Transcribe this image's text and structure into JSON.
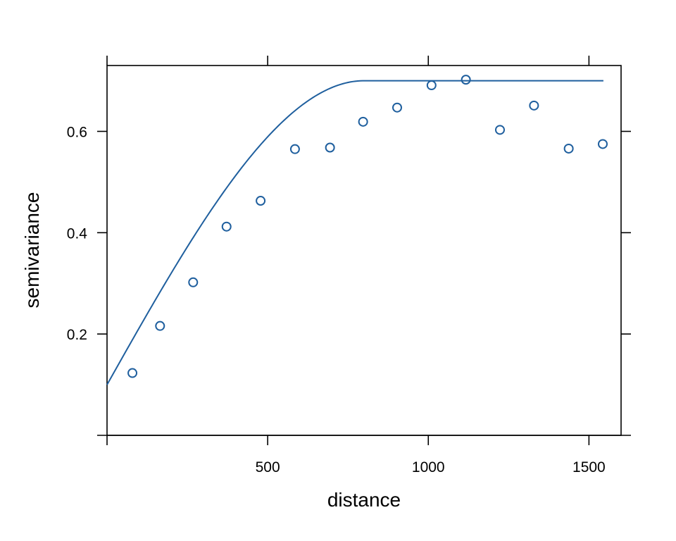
{
  "chart_data": {
    "type": "scatter",
    "title": "",
    "xlabel": "distance",
    "ylabel": "semivariance",
    "xlim": [
      0,
      1600
    ],
    "ylim": [
      0,
      0.73
    ],
    "x_ticks": [
      500,
      1000,
      1500
    ],
    "x_tick_labels": [
      "500",
      "1000",
      "1500"
    ],
    "y_ticks": [
      0.2,
      0.4,
      0.6
    ],
    "y_tick_labels": [
      "0.2",
      "0.4",
      "0.6"
    ],
    "grid": false,
    "legend": "none",
    "color": "#1f5f9e",
    "series": [
      {
        "kind": "points",
        "x": [
          79,
          165,
          268,
          372,
          478,
          585,
          694,
          797,
          903,
          1010,
          1117,
          1223,
          1329,
          1437,
          1543
        ],
        "y": [
          0.123,
          0.216,
          0.302,
          0.412,
          0.463,
          0.565,
          0.568,
          0.619,
          0.647,
          0.691,
          0.702,
          0.603,
          0.651,
          0.566,
          0.575
        ]
      },
      {
        "kind": "model",
        "model": "spherical",
        "nugget": 0.1,
        "sill": 0.7,
        "range": 800,
        "x_end": 1545
      }
    ]
  }
}
